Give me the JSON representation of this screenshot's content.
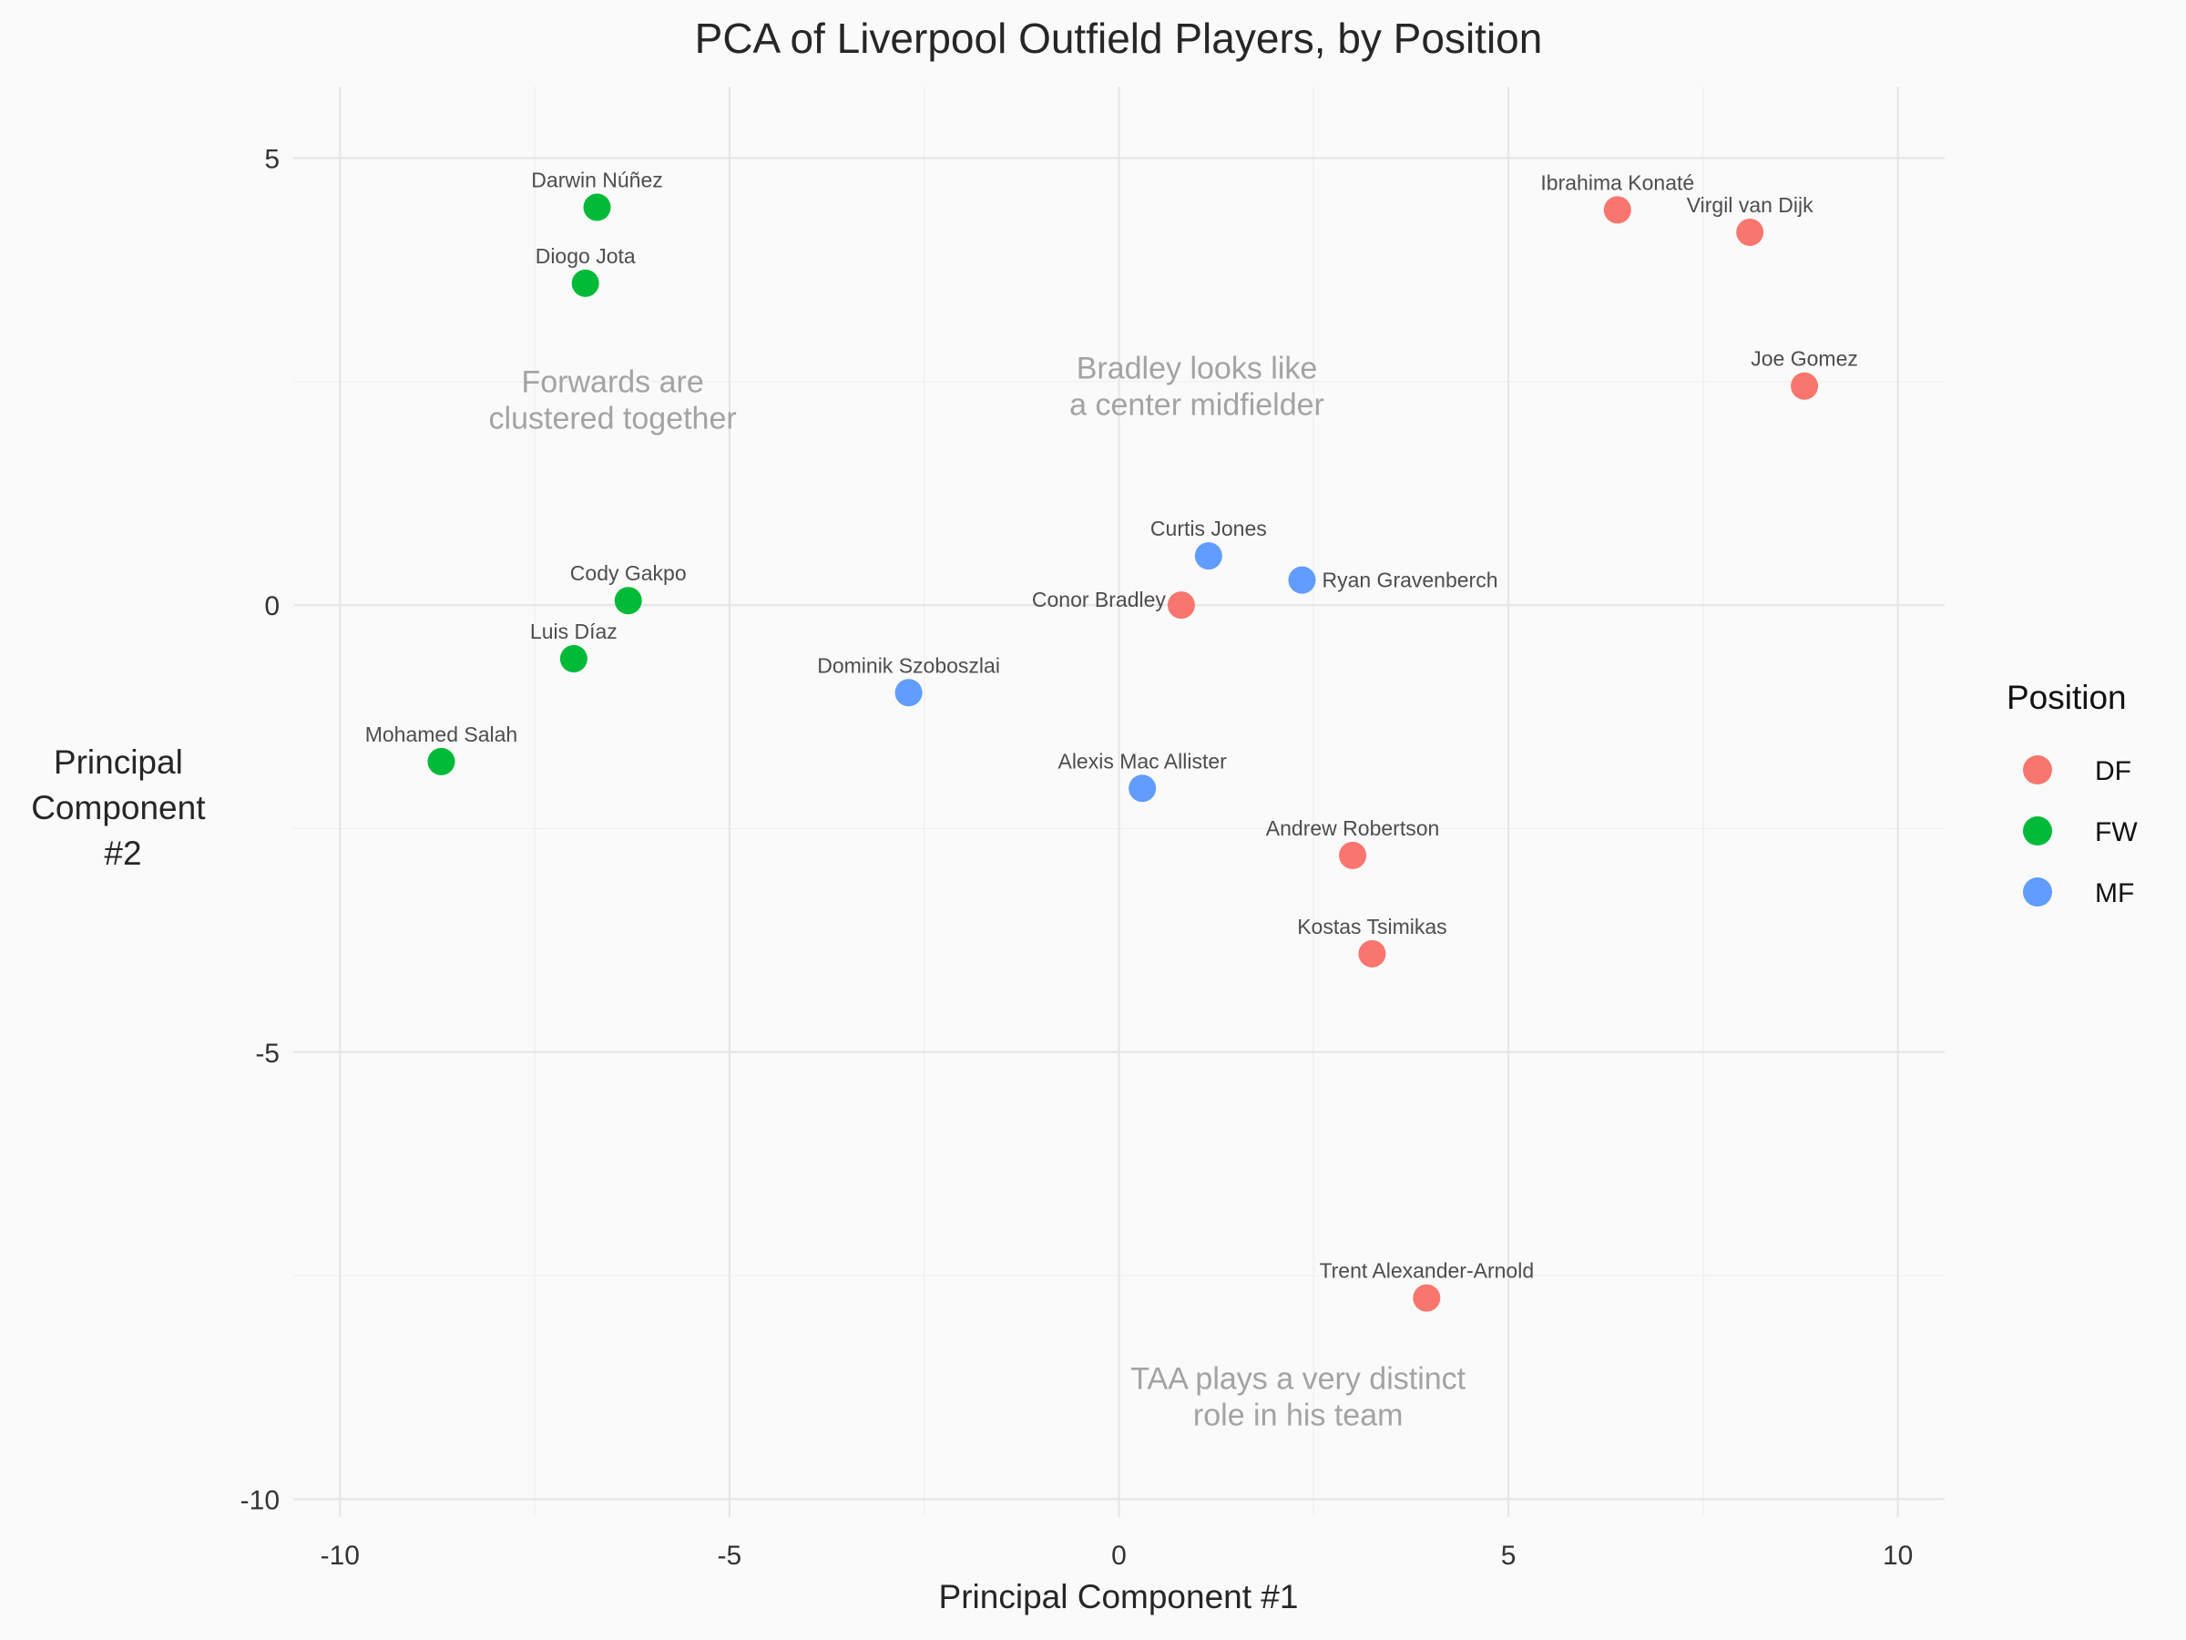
{
  "chart_data": {
    "type": "scatter",
    "title": "PCA of Liverpool Outfield Players, by Position",
    "xlabel": "Principal Component #1",
    "ylabel_lines": [
      "Principal",
      "Component",
      "#2"
    ],
    "xlim": [
      -10.6,
      10.6
    ],
    "ylim": [
      -10.2,
      5.8
    ],
    "xticks": [
      -10,
      -5,
      0,
      5,
      10
    ],
    "yticks": [
      5,
      0,
      -5,
      -10
    ],
    "xtick_labels": [
      "-10",
      "-5",
      "0",
      "5",
      "10"
    ],
    "ytick_labels": [
      "5",
      "0",
      "-5",
      "-10"
    ],
    "grid": true,
    "legend": {
      "title": "Position",
      "position": "right",
      "entries": [
        {
          "label": "DF",
          "color": "#f8766d"
        },
        {
          "label": "FW",
          "color": "#00ba38"
        },
        {
          "label": "MF",
          "color": "#619cff"
        }
      ]
    },
    "points": [
      {
        "name": "Darwin Núñez",
        "position": "FW",
        "x": -6.7,
        "y": 4.45
      },
      {
        "name": "Diogo Jota",
        "position": "FW",
        "x": -6.85,
        "y": 3.6
      },
      {
        "name": "Cody Gakpo",
        "position": "FW",
        "x": -6.3,
        "y": 0.05
      },
      {
        "name": "Luis Díaz",
        "position": "FW",
        "x": -7.0,
        "y": -0.6
      },
      {
        "name": "Mohamed Salah",
        "position": "FW",
        "x": -8.7,
        "y": -1.75
      },
      {
        "name": "Dominik Szoboszlai",
        "position": "MF",
        "x": -2.7,
        "y": -0.98
      },
      {
        "name": "Alexis Mac Allister",
        "position": "MF",
        "x": 0.3,
        "y": -2.05
      },
      {
        "name": "Curtis Jones",
        "position": "MF",
        "x": 1.15,
        "y": 0.55
      },
      {
        "name": "Ryan Gravenberch",
        "position": "MF",
        "x": 2.35,
        "y": 0.28
      },
      {
        "name": "Conor Bradley",
        "position": "DF",
        "x": 0.8,
        "y": 0.0
      },
      {
        "name": "Ibrahima Konaté",
        "position": "DF",
        "x": 6.4,
        "y": 4.42
      },
      {
        "name": "Virgil van Dijk",
        "position": "DF",
        "x": 8.1,
        "y": 4.17
      },
      {
        "name": "Joe Gomez",
        "position": "DF",
        "x": 8.8,
        "y": 2.45
      },
      {
        "name": "Andrew Robertson",
        "position": "DF",
        "x": 3.0,
        "y": -2.8
      },
      {
        "name": "Kostas Tsimikas",
        "position": "DF",
        "x": 3.25,
        "y": -3.9
      },
      {
        "name": "Trent Alexander-Arnold",
        "position": "DF",
        "x": 3.95,
        "y": -7.75
      }
    ],
    "annotations": [
      {
        "lines": [
          "Forwards are",
          "clustered together"
        ],
        "x": -6.5,
        "y": 2.3
      },
      {
        "lines": [
          "Bradley looks like",
          "a center midfielder"
        ],
        "x": 1.0,
        "y": 2.45
      },
      {
        "lines": [
          "TAA plays a very distinct",
          "role in his team"
        ],
        "x": 2.3,
        "y": -8.85
      }
    ]
  }
}
